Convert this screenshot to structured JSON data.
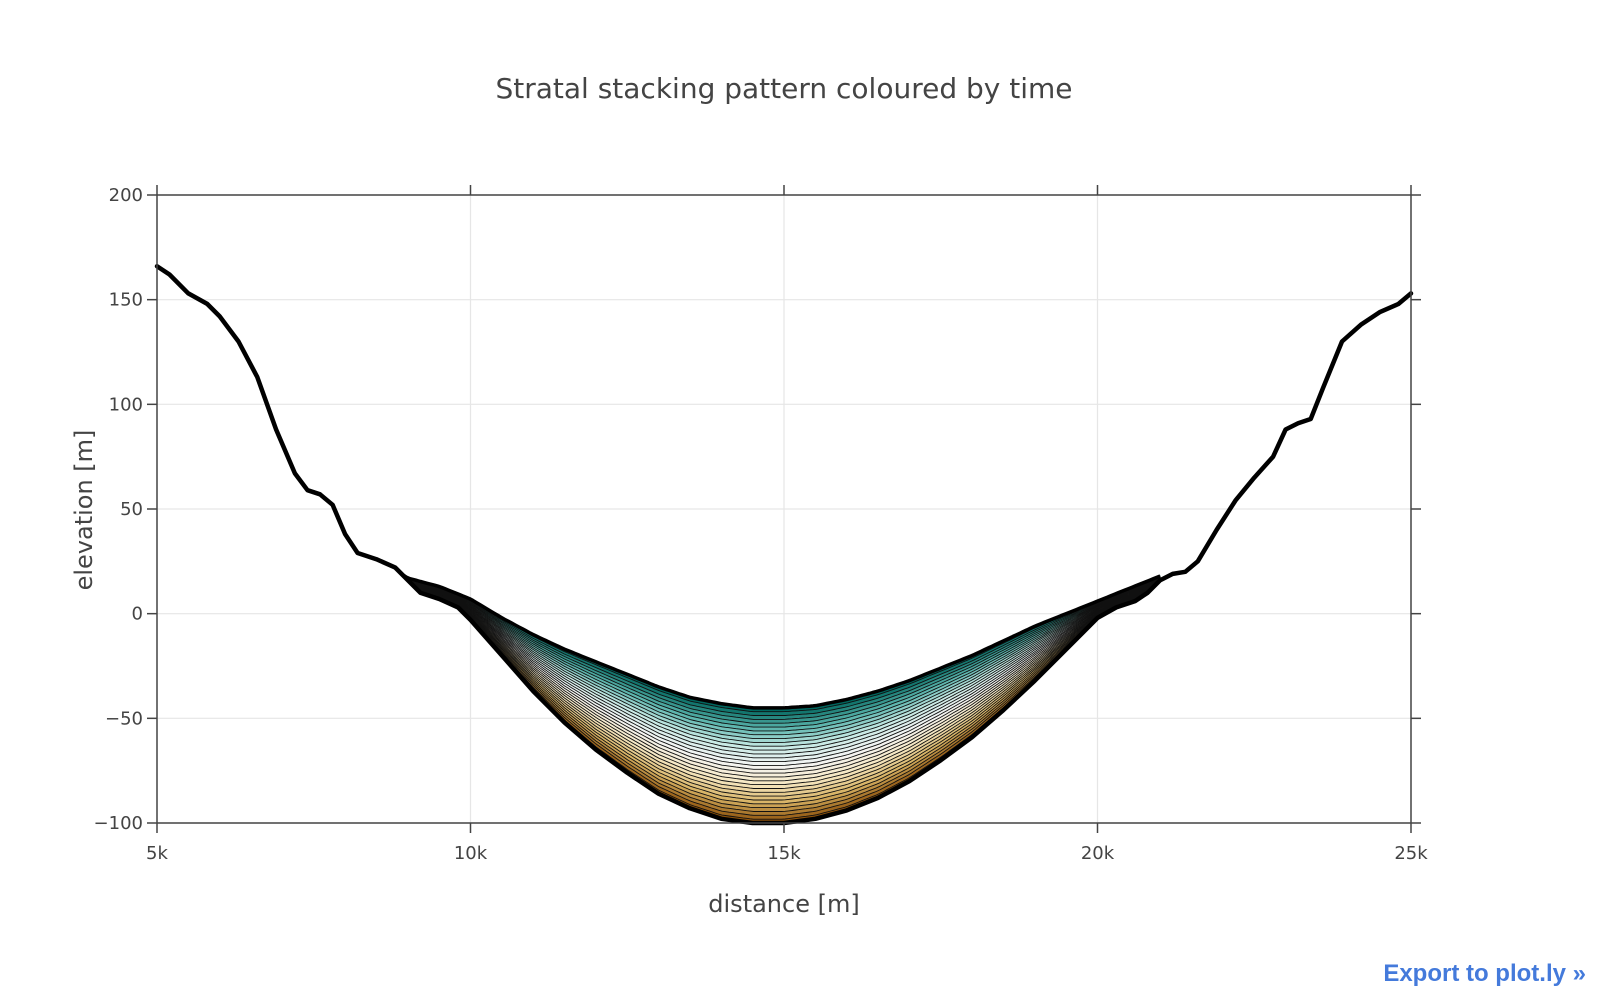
{
  "export_link": "Export to plot.ly »",
  "chart_data": {
    "type": "area",
    "title": "Stratal stacking pattern coloured by time",
    "xlabel": "distance [m]",
    "ylabel": "elevation [m]",
    "xlim": [
      5000,
      25000
    ],
    "ylim": [
      -100,
      200
    ],
    "x_ticks": [
      5000,
      10000,
      15000,
      20000,
      25000
    ],
    "x_tick_labels": [
      "5k",
      "10k",
      "15k",
      "20k",
      "25k"
    ],
    "y_ticks": [
      -100,
      -50,
      0,
      50,
      100,
      150,
      200
    ],
    "y_tick_labels": [
      "−100",
      "−50",
      "0",
      "50",
      "100",
      "150",
      "200"
    ],
    "grid": true,
    "legend": "none",
    "colorscale": [
      "#8c510a",
      "#d8b365",
      "#f6e8c3",
      "#f5f5f5",
      "#c7eae5",
      "#5ab4ac",
      "#01665e"
    ],
    "layer_count": 30,
    "basement": {
      "x": [
        5000,
        5200,
        5500,
        5800,
        6000,
        6300,
        6600,
        6900,
        7200,
        7400,
        7600,
        7800,
        8000,
        8200,
        8500,
        8800,
        9200,
        9500,
        9800,
        10000,
        10500,
        11000,
        11500,
        12000,
        12500,
        13000,
        13500,
        14000,
        14500,
        15000,
        15500,
        16000,
        16500,
        17000,
        17500,
        18000,
        18500,
        19000,
        19500,
        20000,
        20300,
        20600,
        20800,
        21000,
        21200,
        21400,
        21600,
        21900,
        22200,
        22500,
        22800,
        23000,
        23200,
        23400,
        23600,
        23900,
        24200,
        24500,
        24800,
        25000
      ],
      "y": [
        166,
        162,
        153,
        148,
        142,
        130,
        113,
        88,
        67,
        59,
        57,
        52,
        38,
        29,
        26,
        22,
        10,
        7,
        3,
        -3,
        -20,
        -37,
        -52,
        -65,
        -76,
        -86,
        -93,
        -98,
        -100,
        -100,
        -98,
        -94,
        -88,
        -80,
        -70,
        -59,
        -46,
        -32,
        -17,
        -2,
        3,
        6,
        10,
        16,
        19,
        20,
        25,
        40,
        54,
        65,
        75,
        88,
        91,
        93,
        108,
        130,
        138,
        144,
        148,
        153
      ]
    },
    "top_surface": {
      "x": [
        8700,
        9000,
        9500,
        10000,
        10500,
        11000,
        11500,
        12000,
        12500,
        13000,
        13500,
        14000,
        14500,
        15000,
        15500,
        16000,
        16500,
        17000,
        17500,
        18000,
        18500,
        19000,
        19500,
        20000,
        20500,
        21000
      ],
      "y": [
        23,
        17,
        13,
        7,
        -2,
        -10,
        -17,
        -23,
        -29,
        -35,
        -40,
        -43,
        -45,
        -45,
        -44,
        -41,
        -37,
        -32,
        -26,
        -20,
        -13,
        -6,
        0,
        6,
        12,
        18
      ]
    }
  }
}
